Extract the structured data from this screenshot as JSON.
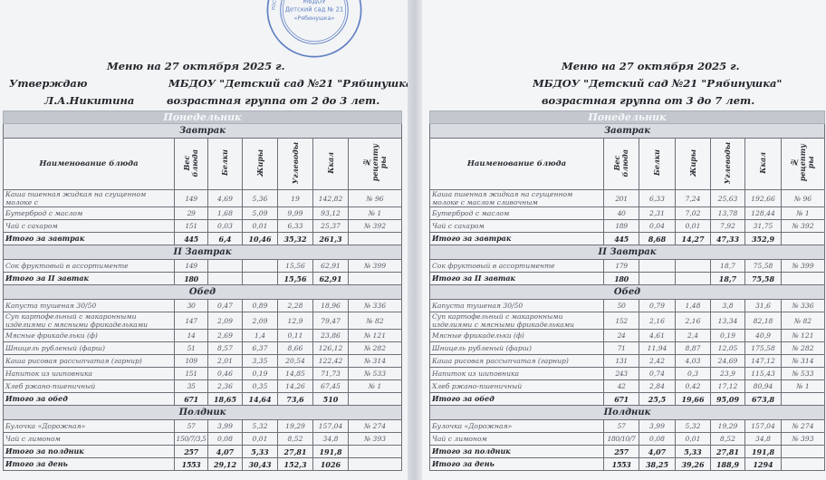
{
  "columns": {
    "name": "Наименование блюда",
    "weight": "Вес\nблюда",
    "protein": "Белки",
    "fat": "Жиры",
    "carbs": "Углеводы",
    "kcal": "Ккал",
    "recipe": "№\nрецепту\nры"
  },
  "stamp": {
    "text": "МБДОУ Детский сад № 21 «Рябинушка»",
    "color": "#3d63b8"
  },
  "pages": [
    {
      "approve": "Утверждаю",
      "signer": "Л.А.Никитина",
      "title": "Меню на 27 октября 2025 г.",
      "org": "МБДОУ \"Детский сад №21 \"Рябинушка\"",
      "group": "возрастная группа от 2 до 3 лет.",
      "day": "Понедельник",
      "sections": [
        {
          "title": "Завтрак",
          "header": true,
          "rows": [
            {
              "name": "Каша пшенная жидкая на сгущенном молоке с",
              "weight": "149",
              "protein": "4,69",
              "fat": "5,36",
              "carbs": "19",
              "kcal": "142,82",
              "recipe": "№ 96"
            },
            {
              "name": "Бутерброд с маслом",
              "weight": "29",
              "protein": "1,68",
              "fat": "5,09",
              "carbs": "9,99",
              "kcal": "93,12",
              "recipe": "№ 1"
            },
            {
              "name": "Чай с сахаром",
              "weight": "151",
              "protein": "0,03",
              "fat": "0,01",
              "carbs": "6,33",
              "kcal": "25,37",
              "recipe": "№ 392"
            }
          ],
          "total": {
            "name": "Итого за завтрак",
            "weight": "445",
            "protein": "6,4",
            "fat": "10,46",
            "carbs": "35,32",
            "kcal": "261,3",
            "recipe": ""
          }
        },
        {
          "title": "II Завтрак",
          "rows": [
            {
              "name": "Сок фруктовый в ассортименте",
              "weight": "149",
              "protein": "",
              "fat": "",
              "carbs": "15,56",
              "kcal": "62,91",
              "recipe": "№ 399"
            }
          ],
          "total": {
            "name": "Итого за II завтак",
            "weight": "180",
            "protein": "",
            "fat": "",
            "carbs": "15,56",
            "kcal": "62,91",
            "recipe": ""
          }
        },
        {
          "title": "Обед",
          "rows": [
            {
              "name": "Капуста тушеная 30/50",
              "weight": "30",
              "protein": "0,47",
              "fat": "0,89",
              "carbs": "2,28",
              "kcal": "18,96",
              "recipe": "№ 336"
            },
            {
              "name": "Суп картофельный с макаронными изделиями с мясными фрикадельками",
              "weight": "147",
              "protein": "2,09",
              "fat": "2,09",
              "carbs": "12,9",
              "kcal": "79,47",
              "recipe": "№ 82"
            },
            {
              "name": "Мясные фрикадельки (ф)",
              "weight": "14",
              "protein": "2,69",
              "fat": "1,4",
              "carbs": "0,11",
              "kcal": "23,86",
              "recipe": "№ 121"
            },
            {
              "name": "Шницель рубленый (фарш)",
              "weight": "51",
              "protein": "8,57",
              "fat": "6,37",
              "carbs": "8,66",
              "kcal": "126,12",
              "recipe": "№ 282"
            },
            {
              "name": "Каша рисовая рассыпчатая (гарнир)",
              "weight": "109",
              "protein": "2,01",
              "fat": "3,35",
              "carbs": "20,54",
              "kcal": "122,42",
              "recipe": "№ 314"
            },
            {
              "name": "Напиток из шиповника",
              "weight": "151",
              "protein": "0,46",
              "fat": "0,19",
              "carbs": "14,85",
              "kcal": "71,73",
              "recipe": "№ 533"
            },
            {
              "name": "Хлеб ржано-пшеничный",
              "weight": "35",
              "protein": "2,36",
              "fat": "0,35",
              "carbs": "14,26",
              "kcal": "67,45",
              "recipe": "№ 1"
            }
          ],
          "total": {
            "name": "Итого за обед",
            "weight": "671",
            "protein": "18,65",
            "fat": "14,64",
            "carbs": "73,6",
            "kcal": "510",
            "recipe": ""
          }
        },
        {
          "title": "Полдник",
          "rows": [
            {
              "name": "Булочка «Дорожная»",
              "weight": "57",
              "protein": "3,99",
              "fat": "5,32",
              "carbs": "19,29",
              "kcal": "157,04",
              "recipe": "№ 274"
            },
            {
              "name": "Чай с лимоном",
              "weight": "150/7/3,5",
              "protein": "0,08",
              "fat": "0,01",
              "carbs": "8,52",
              "kcal": "34,8",
              "recipe": "№ 393"
            }
          ],
          "total": {
            "name": "Итого за полдник",
            "weight": "257",
            "protein": "4,07",
            "fat": "5,33",
            "carbs": "27,81",
            "kcal": "191,8",
            "recipe": ""
          }
        }
      ],
      "day_total": {
        "name": "Итого за день",
        "weight": "1553",
        "protein": "29,12",
        "fat": "30,43",
        "carbs": "152,3",
        "kcal": "1026",
        "recipe": ""
      }
    },
    {
      "title": "Меню на 27 октября 2025 г.",
      "org": "МБДОУ \"Детский сад №21 \"Рябинушка\"",
      "group": "возрастная группа от 3 до 7 лет.",
      "day": "Понедельник",
      "sections": [
        {
          "title": "Завтрак",
          "header": true,
          "rows": [
            {
              "name": "Каша пшенная жидкая на сгущенном молоке с маслом сливочным",
              "weight": "201",
              "protein": "6,33",
              "fat": "7,24",
              "carbs": "25,63",
              "kcal": "192,66",
              "recipe": "№ 96"
            },
            {
              "name": "Бутерброд с маслом",
              "weight": "40",
              "protein": "2,31",
              "fat": "7,02",
              "carbs": "13,78",
              "kcal": "128,44",
              "recipe": "№ 1"
            },
            {
              "name": "Чай с сахаром",
              "weight": "189",
              "protein": "0,04",
              "fat": "0,01",
              "carbs": "7,92",
              "kcal": "31,75",
              "recipe": "№ 392"
            }
          ],
          "total": {
            "name": "Итого за завтрак",
            "weight": "445",
            "protein": "8,68",
            "fat": "14,27",
            "carbs": "47,33",
            "kcal": "352,9",
            "recipe": ""
          }
        },
        {
          "title": "II Завтрак",
          "rows": [
            {
              "name": "Сок фруктовый в ассортименте",
              "weight": "179",
              "protein": "",
              "fat": "",
              "carbs": "18,7",
              "kcal": "75,58",
              "recipe": "№ 399"
            }
          ],
          "total": {
            "name": "Итого за II завтак",
            "weight": "180",
            "protein": "",
            "fat": "",
            "carbs": "18,7",
            "kcal": "75,58",
            "recipe": ""
          }
        },
        {
          "title": "Обед",
          "rows": [
            {
              "name": "Капуста тушеная 30/50",
              "weight": "50",
              "protein": "0,79",
              "fat": "1,48",
              "carbs": "3,8",
              "kcal": "31,6",
              "recipe": "№ 336"
            },
            {
              "name": "Суп картофельный с макаронными изделиями с мясными фрикадельками",
              "weight": "152",
              "protein": "2,16",
              "fat": "2,16",
              "carbs": "13,34",
              "kcal": "82,18",
              "recipe": "№ 82"
            },
            {
              "name": "Мясные фрикадельки (ф)",
              "weight": "24",
              "protein": "4,61",
              "fat": "2,4",
              "carbs": "0,19",
              "kcal": "40,9",
              "recipe": "№ 121"
            },
            {
              "name": "Шницель рубленый (фарш)",
              "weight": "71",
              "protein": "11,94",
              "fat": "8,87",
              "carbs": "12,05",
              "kcal": "175,58",
              "recipe": "№ 282"
            },
            {
              "name": "Каша рисовая рассыпчатая (гарнир)",
              "weight": "131",
              "protein": "2,42",
              "fat": "4,03",
              "carbs": "24,69",
              "kcal": "147,12",
              "recipe": "№ 314"
            },
            {
              "name": "Напиток из шиповника",
              "weight": "243",
              "protein": "0,74",
              "fat": "0,3",
              "carbs": "23,9",
              "kcal": "115,43",
              "recipe": "№ 533"
            },
            {
              "name": "Хлеб ржано-пшеничный",
              "weight": "42",
              "protein": "2,84",
              "fat": "0,42",
              "carbs": "17,12",
              "kcal": "80,94",
              "recipe": "№ 1"
            }
          ],
          "total": {
            "name": "Итого за обед",
            "weight": "671",
            "protein": "25,5",
            "fat": "19,66",
            "carbs": "95,09",
            "kcal": "673,8",
            "recipe": ""
          }
        },
        {
          "title": "Полдник",
          "rows": [
            {
              "name": "Булочка «Дорожная»",
              "weight": "57",
              "protein": "3,99",
              "fat": "5,32",
              "carbs": "19,29",
              "kcal": "157,04",
              "recipe": "№ 274"
            },
            {
              "name": "Чай с лимоном",
              "weight": "180/10/7",
              "protein": "0,08",
              "fat": "0,01",
              "carbs": "8,52",
              "kcal": "34,8",
              "recipe": "№ 393"
            }
          ],
          "total": {
            "name": "Итого за полдник",
            "weight": "257",
            "protein": "4,07",
            "fat": "5,33",
            "carbs": "27,81",
            "kcal": "191,8",
            "recipe": ""
          }
        }
      ],
      "day_total": {
        "name": "Итого за день",
        "weight": "1553",
        "protein": "38,25",
        "fat": "39,26",
        "carbs": "188,9",
        "kcal": "1294",
        "recipe": ""
      }
    }
  ]
}
